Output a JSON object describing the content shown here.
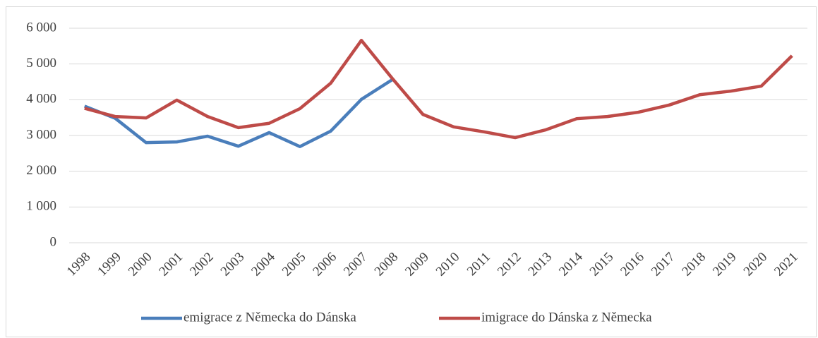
{
  "chart_data": {
    "type": "line",
    "categories": [
      "1998",
      "1999",
      "2000",
      "2001",
      "2002",
      "2003",
      "2004",
      "2005",
      "2006",
      "2007",
      "2008",
      "2009",
      "2010",
      "2011",
      "2012",
      "2013",
      "2014",
      "2015",
      "2016",
      "2017",
      "2018",
      "2019",
      "2020",
      "2021"
    ],
    "series": [
      {
        "name": "emigrace z Německa do Dánska",
        "color": "#4a7ebb",
        "values": [
          3820,
          3480,
          2800,
          2820,
          2980,
          2700,
          3080,
          2690,
          3120,
          4010,
          4560,
          null,
          null,
          null,
          null,
          null,
          null,
          null,
          null,
          null,
          null,
          null,
          null,
          null
        ]
      },
      {
        "name": "imigrace do Dánska z Německa",
        "color": "#be4b48",
        "values": [
          3760,
          3530,
          3490,
          3990,
          3530,
          3220,
          3340,
          3750,
          4460,
          5660,
          4600,
          3590,
          3240,
          3100,
          2940,
          3160,
          3470,
          3530,
          3650,
          3850,
          4140,
          4240,
          4380,
          5230
        ]
      }
    ],
    "ylim": [
      0,
      6000
    ],
    "yticks": [
      0,
      {
        "value": 1000,
        "label": "1 000"
      },
      {
        "value": 2000,
        "label": "2 000"
      },
      {
        "value": 3000,
        "label": "3 000"
      },
      {
        "value": 4000,
        "label": "4 000"
      },
      {
        "value": 5000,
        "label": "5 000"
      },
      {
        "value": 6000,
        "label": "6 000"
      }
    ],
    "grid": true,
    "legend": "bottom"
  }
}
